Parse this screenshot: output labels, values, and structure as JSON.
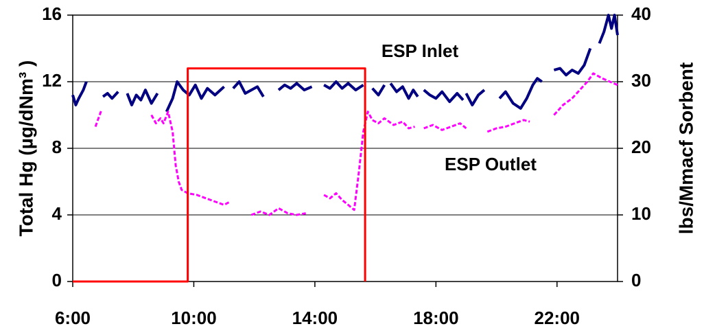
{
  "chart_data": {
    "type": "line",
    "y_label": "Total Hg (µg/dNm³ )",
    "y2_label": "lbs/Mmacf Sorbent",
    "annotations": [
      "ESP Inlet",
      "ESP Outlet"
    ],
    "xlim": [
      6,
      24
    ],
    "xticks": [
      {
        "value": 6,
        "label": "6:00"
      },
      {
        "value": 10,
        "label": "10:00"
      },
      {
        "value": 14,
        "label": "14:00"
      },
      {
        "value": 18,
        "label": "18:00"
      },
      {
        "value": 22,
        "label": "22:00"
      }
    ],
    "ylim": [
      0,
      16
    ],
    "yticks": [
      0,
      4,
      8,
      12,
      16
    ],
    "y2lim": [
      0,
      40
    ],
    "y2ticks": [
      0,
      10,
      20,
      30,
      40
    ],
    "grid": true,
    "series": [
      {
        "name": "ESP Inlet",
        "color": "#000080",
        "style": "solid",
        "x": [
          6.0,
          6.1,
          6.2,
          6.35,
          6.45,
          6.7,
          7.0,
          7.15,
          7.3,
          7.5,
          7.65,
          7.8,
          7.95,
          8.1,
          8.25,
          8.4,
          8.6,
          8.8,
          8.95,
          9.1,
          9.3,
          9.45,
          9.65,
          9.85,
          10.05,
          10.25,
          10.45,
          10.7,
          11.0,
          11.15,
          11.3,
          11.5,
          11.7,
          11.9,
          12.1,
          12.3,
          12.55,
          12.8,
          13.0,
          13.2,
          13.4,
          13.65,
          13.9,
          14.1,
          14.3,
          14.5,
          14.7,
          14.9,
          15.1,
          15.35,
          15.6,
          15.75,
          15.9,
          16.1,
          16.3,
          16.4,
          16.5,
          16.7,
          16.9,
          17.1,
          17.25,
          17.4,
          17.5,
          17.6,
          17.8,
          18.0,
          18.2,
          18.45,
          18.7,
          18.9,
          18.95,
          19.0,
          19.2,
          19.4,
          19.6,
          19.85,
          20.1,
          20.3,
          20.55,
          20.8,
          21.0,
          21.2,
          21.35,
          21.5,
          21.7,
          21.9,
          22.1,
          22.3,
          22.5,
          22.7,
          22.9,
          23.1,
          23.25,
          23.4,
          23.55,
          23.7,
          23.8,
          23.9,
          24.0
        ],
        "values": [
          11.2,
          10.6,
          11.0,
          11.5,
          12.0,
          null,
          11.1,
          11.3,
          11.0,
          11.4,
          null,
          11.3,
          10.6,
          11.2,
          10.9,
          11.5,
          10.7,
          11.3,
          null,
          10.2,
          11.0,
          12.0,
          11.5,
          11.2,
          11.8,
          11.0,
          11.6,
          11.2,
          11.7,
          null,
          11.6,
          12.0,
          11.3,
          11.5,
          11.7,
          11.1,
          null,
          11.5,
          11.8,
          11.6,
          11.9,
          11.5,
          11.7,
          null,
          11.8,
          11.6,
          12.0,
          11.6,
          11.9,
          11.5,
          11.8,
          null,
          11.6,
          11.2,
          11.8,
          null,
          11.9,
          11.4,
          11.7,
          11.0,
          11.5,
          11.1,
          null,
          11.5,
          11.2,
          11.0,
          11.4,
          10.8,
          11.3,
          10.9,
          null,
          11.3,
          10.6,
          11.2,
          11.5,
          null,
          11.0,
          11.4,
          10.7,
          10.4,
          11.0,
          11.8,
          12.2,
          12.0,
          null,
          12.7,
          12.8,
          12.4,
          12.7,
          12.5,
          13.0,
          14.0,
          null,
          14.3,
          15.0,
          16.0,
          15.2,
          16.0,
          14.8
        ]
      },
      {
        "name": "ESP Outlet",
        "color": "#ff00ff",
        "style": "dashed",
        "x": [
          6.75,
          6.85,
          6.95,
          7.1,
          8.6,
          8.75,
          8.9,
          9.0,
          9.15,
          9.3,
          9.4,
          9.5,
          9.6,
          9.8,
          10.1,
          10.4,
          10.7,
          11.0,
          11.2,
          11.5,
          11.9,
          12.2,
          12.5,
          12.8,
          13.1,
          13.4,
          13.7,
          14.0,
          14.3,
          14.5,
          14.7,
          14.9,
          15.1,
          15.3,
          15.45,
          15.6,
          15.75,
          15.9,
          16.1,
          16.3,
          16.6,
          16.9,
          17.1,
          17.3,
          17.45,
          17.6,
          17.9,
          18.2,
          18.5,
          18.8,
          19.0,
          19.3,
          19.7,
          20.0,
          20.3,
          20.6,
          20.9,
          21.1,
          21.4,
          21.9,
          22.2,
          22.5,
          22.8,
          23.0,
          23.2,
          23.5,
          24.0
        ],
        "values": [
          9.3,
          9.8,
          10.3,
          null,
          10.0,
          9.5,
          9.8,
          9.5,
          10.2,
          9.0,
          7.0,
          6.0,
          5.5,
          5.3,
          5.2,
          5.0,
          4.8,
          4.6,
          4.8,
          null,
          4.0,
          4.2,
          4.0,
          4.4,
          4.1,
          4.0,
          4.1,
          null,
          5.2,
          5.0,
          5.3,
          4.9,
          4.6,
          4.3,
          6.5,
          9.0,
          10.2,
          9.7,
          9.5,
          9.8,
          9.4,
          9.6,
          9.2,
          9.3,
          null,
          9.2,
          9.4,
          9.1,
          9.3,
          9.5,
          9.2,
          null,
          9.0,
          9.2,
          9.3,
          9.5,
          9.7,
          9.6,
          null,
          10.0,
          10.6,
          11.0,
          11.6,
          12.0,
          12.5,
          12.2,
          11.8
        ]
      },
      {
        "name": "Sorbent",
        "color": "#ff0000",
        "style": "solid",
        "axis": "y2",
        "x": [
          6,
          9.8,
          9.8,
          15.66,
          15.66
        ],
        "values": [
          0,
          0,
          32,
          32,
          0
        ]
      }
    ]
  }
}
